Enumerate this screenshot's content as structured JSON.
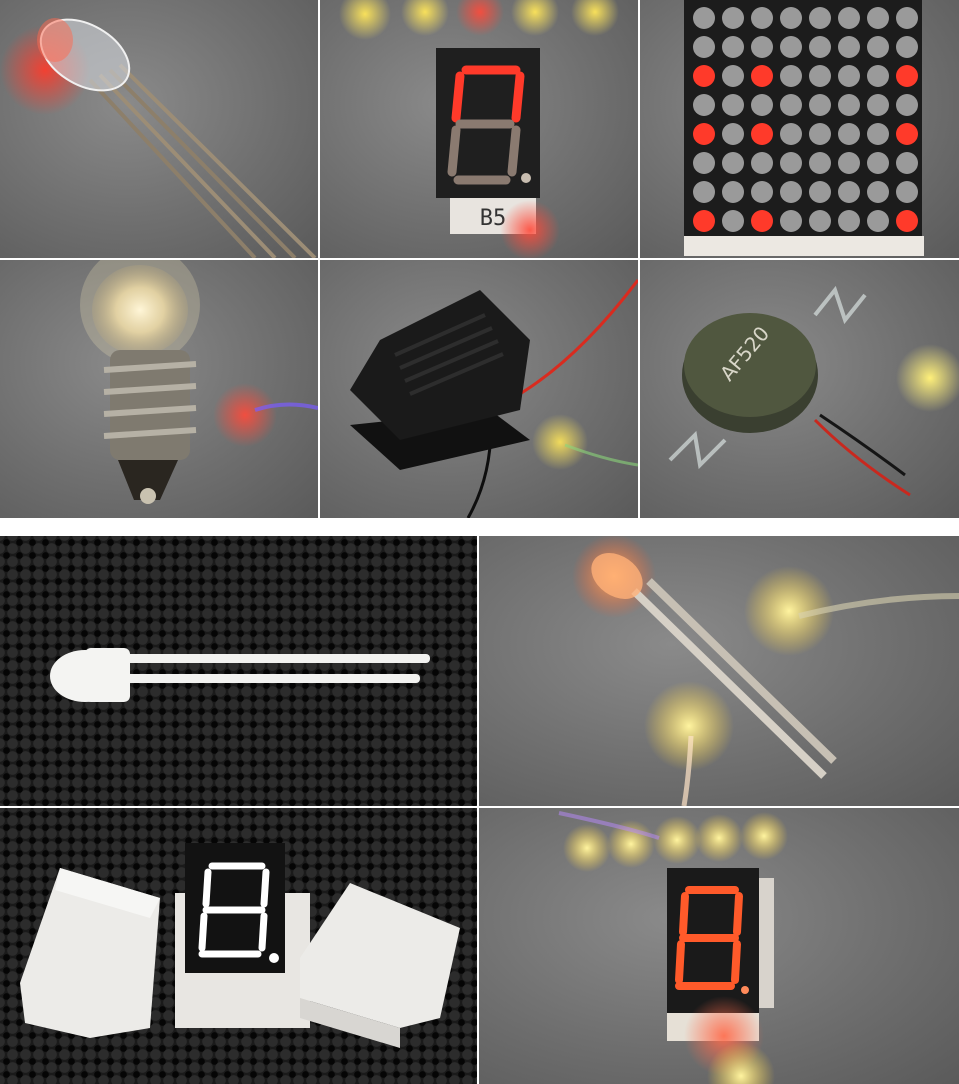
{
  "top_grid": {
    "panels": [
      {
        "name": "rgb-led-photo"
      },
      {
        "name": "seven-segment-display-photo",
        "display_text": "B5"
      },
      {
        "name": "led-dot-matrix-photo",
        "rows": 8,
        "cols": 8,
        "lit": [
          [
            2,
            0
          ],
          [
            2,
            2
          ],
          [
            2,
            7
          ],
          [
            4,
            0
          ],
          [
            4,
            2
          ],
          [
            4,
            7
          ],
          [
            7,
            0
          ],
          [
            7,
            2
          ],
          [
            7,
            7
          ]
        ]
      },
      {
        "name": "incandescent-bulb-photo"
      },
      {
        "name": "buzzer-photo"
      },
      {
        "name": "vibration-motor-photo",
        "display_text": "AF520"
      }
    ]
  },
  "bottom_grid": {
    "panels": [
      {
        "name": "printed-led-on-fabric-photo"
      },
      {
        "name": "printed-led-glowing-photo"
      },
      {
        "name": "printed-seven-segment-on-fabric-photo"
      },
      {
        "name": "printed-seven-segment-glowing-photo"
      }
    ]
  },
  "colors": {
    "led_red": "#ff3a2a",
    "led_off": "#9a9a9a",
    "glow_yellow": "#ffe65a",
    "divider": "#ffffff"
  }
}
